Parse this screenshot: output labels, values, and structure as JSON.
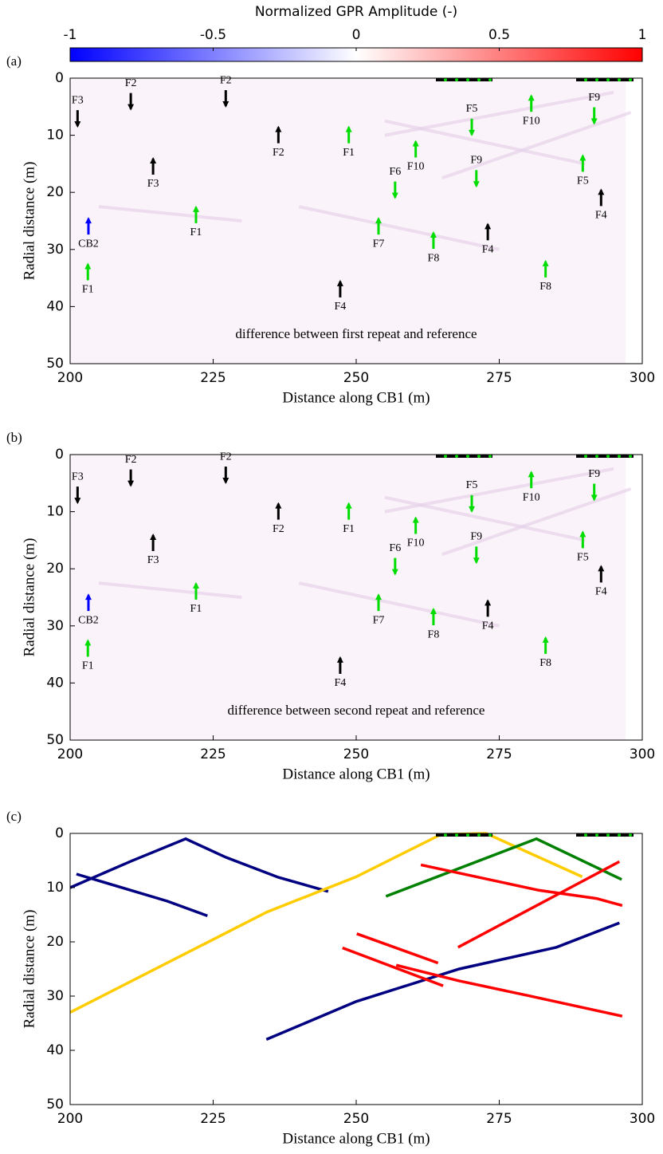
{
  "colorbar": {
    "title": "Normalized GPR Amplitude (-)",
    "lim": [
      -1,
      1
    ],
    "ticks": [
      -1,
      -0.5,
      0,
      0.5,
      1
    ],
    "colors": [
      "#0000ff",
      "#ffffff",
      "#ff0000"
    ]
  },
  "chart_data": [
    {
      "type": "image",
      "panel_label": "(a)",
      "xlabel": "Distance along CB1 (m)",
      "ylabel": "Radial distance (m)",
      "xlim": [
        200,
        300
      ],
      "ylim": [
        0,
        50
      ],
      "y_reversed": true,
      "xticks": [
        200,
        225,
        250,
        275,
        300
      ],
      "yticks": [
        0,
        10,
        20,
        30,
        40,
        50
      ],
      "note": {
        "text": "difference between first repeat and reference",
        "x": 250,
        "y": 45
      },
      "annotations": [
        {
          "label": "F3",
          "x": 201.3,
          "y": 7,
          "direction": "down",
          "color": "#000000"
        },
        {
          "label": "F2",
          "x": 210.6,
          "y": 4,
          "direction": "down",
          "color": "#000000"
        },
        {
          "label": "F2",
          "x": 227.2,
          "y": 3.5,
          "direction": "down",
          "color": "#000000"
        },
        {
          "label": "F2",
          "x": 236.4,
          "y": 10,
          "direction": "up",
          "color": "#000000"
        },
        {
          "label": "F1",
          "x": 248.7,
          "y": 10,
          "direction": "up",
          "color": "#00dd00"
        },
        {
          "label": "F5",
          "x": 270.2,
          "y": 8.5,
          "direction": "down",
          "color": "#00dd00"
        },
        {
          "label": "F10",
          "x": 280.6,
          "y": 4.5,
          "direction": "up",
          "color": "#00dd00"
        },
        {
          "label": "F9",
          "x": 291.6,
          "y": 6.5,
          "direction": "down",
          "color": "#00dd00"
        },
        {
          "label": "F3",
          "x": 214.5,
          "y": 15.5,
          "direction": "up",
          "color": "#000000"
        },
        {
          "label": "F10",
          "x": 260.4,
          "y": 12.5,
          "direction": "up",
          "color": "#00dd00"
        },
        {
          "label": "F9",
          "x": 271,
          "y": 17.5,
          "direction": "down",
          "color": "#00dd00"
        },
        {
          "label": "F5",
          "x": 289.6,
          "y": 15,
          "direction": "up",
          "color": "#00dd00"
        },
        {
          "label": "F6",
          "x": 256.8,
          "y": 19.5,
          "direction": "down",
          "color": "#00dd00"
        },
        {
          "label": "F4",
          "x": 292.8,
          "y": 21,
          "direction": "up",
          "color": "#000000"
        },
        {
          "label": "CB2",
          "x": 203.2,
          "y": 26,
          "direction": "up",
          "color": "#0000ff"
        },
        {
          "label": "F1",
          "x": 222,
          "y": 24,
          "direction": "up",
          "color": "#00dd00"
        },
        {
          "label": "F7",
          "x": 253.9,
          "y": 26,
          "direction": "up",
          "color": "#00dd00"
        },
        {
          "label": "F8",
          "x": 263.5,
          "y": 28.5,
          "direction": "up",
          "color": "#00dd00"
        },
        {
          "label": "F4",
          "x": 273,
          "y": 27,
          "direction": "up",
          "color": "#000000"
        },
        {
          "label": "F1",
          "x": 203.1,
          "y": 34,
          "direction": "up",
          "color": "#00dd00"
        },
        {
          "label": "F8",
          "x": 283.1,
          "y": 33.5,
          "direction": "up",
          "color": "#00dd00"
        },
        {
          "label": "F4",
          "x": 247.2,
          "y": 37,
          "direction": "up",
          "color": "#000000"
        }
      ]
    },
    {
      "type": "image",
      "panel_label": "(b)",
      "xlabel": "Distance along CB1 (m)",
      "ylabel": "Radial distance (m)",
      "xlim": [
        200,
        300
      ],
      "ylim": [
        0,
        50
      ],
      "y_reversed": true,
      "xticks": [
        200,
        225,
        250,
        275,
        300
      ],
      "yticks": [
        0,
        10,
        20,
        30,
        40,
        50
      ],
      "note": {
        "text": "difference between second repeat and reference",
        "x": 250,
        "y": 45
      },
      "annotations": [
        {
          "label": "F3",
          "x": 201.3,
          "y": 7,
          "direction": "down",
          "color": "#000000"
        },
        {
          "label": "F2",
          "x": 210.6,
          "y": 4,
          "direction": "down",
          "color": "#000000"
        },
        {
          "label": "F2",
          "x": 227.2,
          "y": 3.5,
          "direction": "down",
          "color": "#000000"
        },
        {
          "label": "F2",
          "x": 236.4,
          "y": 10,
          "direction": "up",
          "color": "#000000"
        },
        {
          "label": "F1",
          "x": 248.7,
          "y": 10,
          "direction": "up",
          "color": "#00dd00"
        },
        {
          "label": "F5",
          "x": 270.2,
          "y": 8.5,
          "direction": "down",
          "color": "#00dd00"
        },
        {
          "label": "F10",
          "x": 280.6,
          "y": 4.5,
          "direction": "up",
          "color": "#00dd00"
        },
        {
          "label": "F9",
          "x": 291.6,
          "y": 6.5,
          "direction": "down",
          "color": "#00dd00"
        },
        {
          "label": "F3",
          "x": 214.5,
          "y": 15.5,
          "direction": "up",
          "color": "#000000"
        },
        {
          "label": "F10",
          "x": 260.4,
          "y": 12.5,
          "direction": "up",
          "color": "#00dd00"
        },
        {
          "label": "F9",
          "x": 271,
          "y": 17.5,
          "direction": "down",
          "color": "#00dd00"
        },
        {
          "label": "F5",
          "x": 289.6,
          "y": 15,
          "direction": "up",
          "color": "#00dd00"
        },
        {
          "label": "F6",
          "x": 256.8,
          "y": 19.5,
          "direction": "down",
          "color": "#00dd00"
        },
        {
          "label": "F4",
          "x": 292.8,
          "y": 21,
          "direction": "up",
          "color": "#000000"
        },
        {
          "label": "CB2",
          "x": 203.2,
          "y": 26,
          "direction": "up",
          "color": "#0000ff"
        },
        {
          "label": "F1",
          "x": 222,
          "y": 24,
          "direction": "up",
          "color": "#00dd00"
        },
        {
          "label": "F7",
          "x": 253.9,
          "y": 26,
          "direction": "up",
          "color": "#00dd00"
        },
        {
          "label": "F8",
          "x": 263.5,
          "y": 28.5,
          "direction": "up",
          "color": "#00dd00"
        },
        {
          "label": "F4",
          "x": 273,
          "y": 27,
          "direction": "up",
          "color": "#000000"
        },
        {
          "label": "F1",
          "x": 203.1,
          "y": 34,
          "direction": "up",
          "color": "#00dd00"
        },
        {
          "label": "F8",
          "x": 283.1,
          "y": 33.5,
          "direction": "up",
          "color": "#00dd00"
        },
        {
          "label": "F4",
          "x": 247.2,
          "y": 37,
          "direction": "up",
          "color": "#000000"
        }
      ]
    },
    {
      "type": "line",
      "panel_label": "(c)",
      "xlabel": "Distance along CB1 (m)",
      "ylabel": "Radial distance (m)",
      "xlim": [
        200,
        300
      ],
      "ylim": [
        0,
        50
      ],
      "y_reversed": true,
      "xticks": [
        200,
        225,
        250,
        275,
        300
      ],
      "yticks": [
        0,
        10,
        20,
        30,
        40,
        50
      ],
      "series": [
        {
          "color": "#000080",
          "x": [
            200,
            210.7,
            220.2,
            227.2,
            236.4,
            245.1
          ],
          "y": [
            10,
            5.1,
            1,
            4.4,
            8.1,
            10.7
          ]
        },
        {
          "color": "#000080",
          "x": [
            201.1,
            217,
            224
          ],
          "y": [
            7.5,
            12.5,
            15.2
          ]
        },
        {
          "color": "#000080",
          "x": [
            234.3,
            250,
            268,
            285,
            296
          ],
          "y": [
            38,
            31,
            25,
            21,
            16.5
          ]
        },
        {
          "color": "#ffcc00",
          "x": [
            200,
            234.4,
            250,
            264.8,
            272.7,
            289.5
          ],
          "y": [
            33,
            14.5,
            8,
            0.2,
            0,
            8
          ]
        },
        {
          "color": "#008000",
          "x": [
            255.2,
            281.5,
            296.4
          ],
          "y": [
            11.6,
            1,
            8.5
          ]
        },
        {
          "color": "#ff0000",
          "x": [
            261.3,
            282,
            292,
            296.5
          ],
          "y": [
            5.8,
            10.5,
            12,
            13.3
          ]
        },
        {
          "color": "#ff0000",
          "x": [
            267.8,
            296
          ],
          "y": [
            21,
            5.2
          ]
        },
        {
          "color": "#ff0000",
          "x": [
            250.1,
            264.3
          ],
          "y": [
            18.5,
            23.9
          ]
        },
        {
          "color": "#ff0000",
          "x": [
            247.6,
            265.2
          ],
          "y": [
            21.1,
            28.1
          ]
        },
        {
          "color": "#ff0000",
          "x": [
            257,
            268,
            280,
            296.5
          ],
          "y": [
            24.3,
            27.2,
            29.9,
            33.7
          ]
        }
      ]
    }
  ]
}
